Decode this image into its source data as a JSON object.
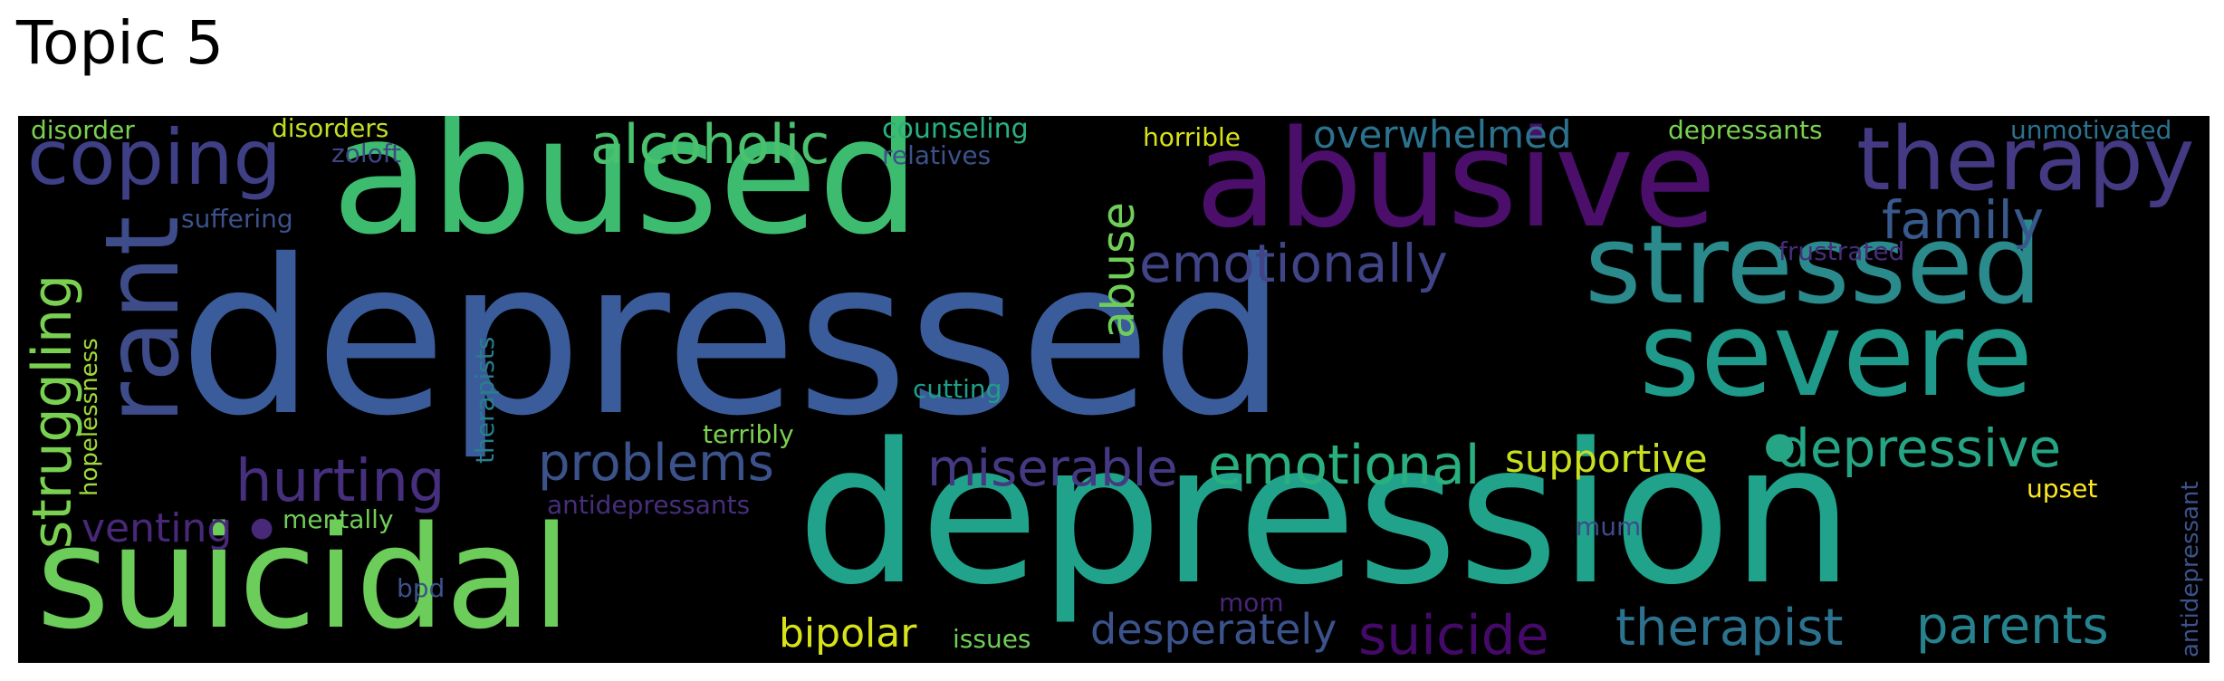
{
  "title": "Topic 5",
  "cloud": {
    "background": "#000000",
    "words": [
      {
        "text": "depressed",
        "color": "#3b5c9a"
      },
      {
        "text": "depression",
        "color": "#21a38b"
      },
      {
        "text": "abused",
        "color": "#3dbc6f"
      },
      {
        "text": "abusive",
        "color": "#4b0f6b"
      },
      {
        "text": "suicidal",
        "color": "#6ccd5a"
      },
      {
        "text": "severe",
        "color": "#1f9a8a"
      },
      {
        "text": "stressed",
        "color": "#2a8a8c"
      },
      {
        "text": "therapy",
        "color": "#443a83"
      },
      {
        "text": "rant",
        "color": "#3e4c8a"
      },
      {
        "text": "coping",
        "color": "#3f3f86"
      },
      {
        "text": "alcoholic",
        "color": "#4ac16d"
      },
      {
        "text": "emotionally",
        "color": "#414487"
      },
      {
        "text": "family",
        "color": "#38598c"
      },
      {
        "text": "struggling",
        "color": "#7ad151"
      },
      {
        "text": "hurting",
        "color": "#46307e"
      },
      {
        "text": "problems",
        "color": "#3b528b"
      },
      {
        "text": "miserable",
        "color": "#443983"
      },
      {
        "text": "emotional",
        "color": "#2ab07f"
      },
      {
        "text": "depressive",
        "color": "#25a584"
      },
      {
        "text": "supportive",
        "color": "#c8e020"
      },
      {
        "text": "therapist",
        "color": "#2c728e"
      },
      {
        "text": "parents",
        "color": "#26828e"
      },
      {
        "text": "suicide",
        "color": "#450a69"
      },
      {
        "text": "desperately",
        "color": "#3b528b"
      },
      {
        "text": "bipolar",
        "color": "#d8e219"
      },
      {
        "text": "abuse",
        "color": "#6ece58"
      },
      {
        "text": "venting",
        "color": "#482878"
      },
      {
        "text": "overwhelmed",
        "color": "#2c728e"
      },
      {
        "text": "disorder",
        "color": "#7ad151"
      },
      {
        "text": "disorders",
        "color": "#c2df23"
      },
      {
        "text": "zoloft",
        "color": "#404588"
      },
      {
        "text": "counseling",
        "color": "#2ab07f"
      },
      {
        "text": "relatives",
        "color": "#3b528b"
      },
      {
        "text": "horrible",
        "color": "#d8e219"
      },
      {
        "text": "depressants",
        "color": "#7ad151"
      },
      {
        "text": "unmotivated",
        "color": "#2c728e"
      },
      {
        "text": "frustrated",
        "color": "#472d7b"
      },
      {
        "text": "suffering",
        "color": "#3b528b"
      },
      {
        "text": "hopelessness",
        "color": "#a0da39"
      },
      {
        "text": "therapists",
        "color": "#287d8e"
      },
      {
        "text": "cutting",
        "color": "#1f9e89"
      },
      {
        "text": "terribly",
        "color": "#7ad151"
      },
      {
        "text": "mentally",
        "color": "#6ece58"
      },
      {
        "text": "antidepressants",
        "color": "#472d7b"
      },
      {
        "text": "bpd",
        "color": "#3b528b"
      },
      {
        "text": "mum",
        "color": "#3e4a89"
      },
      {
        "text": "mom",
        "color": "#482576"
      },
      {
        "text": "issues",
        "color": "#6ece58"
      },
      {
        "text": "upset",
        "color": "#fde725"
      },
      {
        "text": "antidepressant",
        "color": "#3b528b"
      }
    ]
  }
}
